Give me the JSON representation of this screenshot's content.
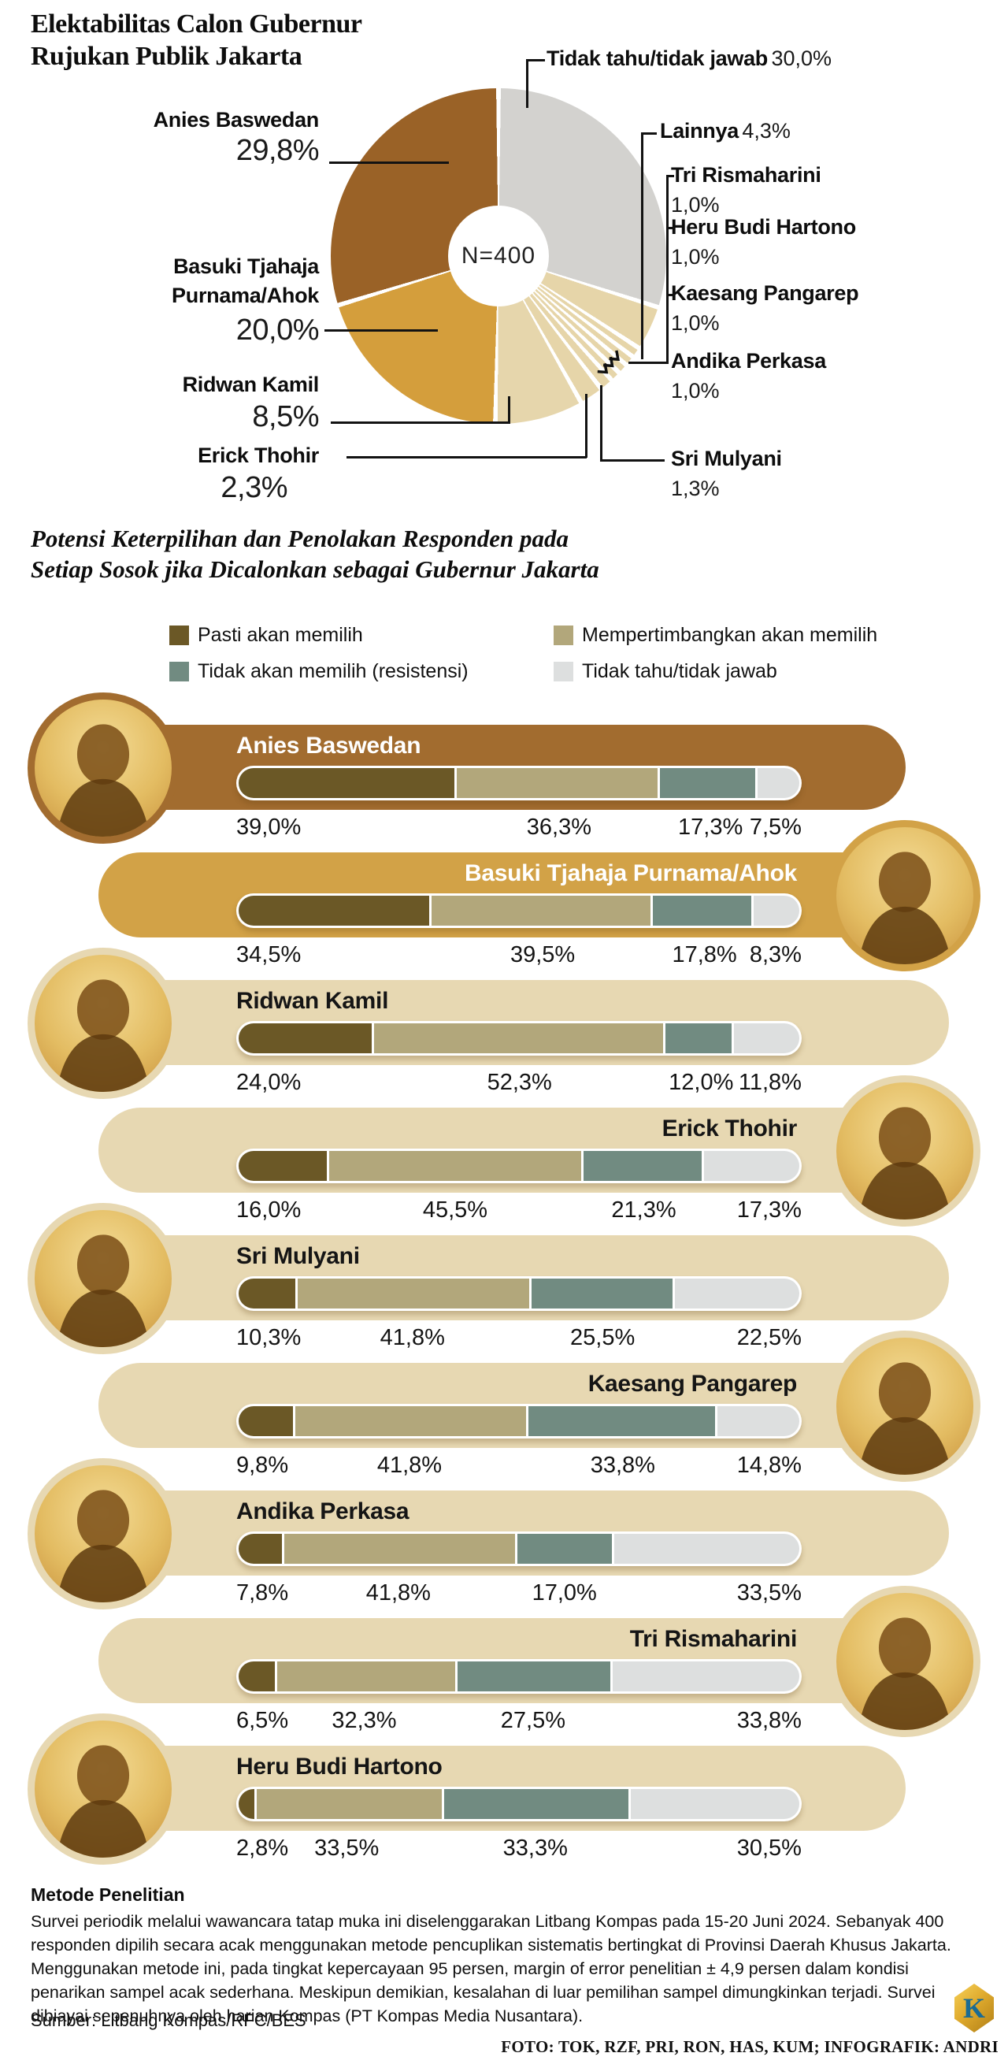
{
  "header": {
    "title_line1": "Elektabilitas Calon Gubernur",
    "title_line2": "Rujukan Publik Jakarta"
  },
  "chart_data": [
    {
      "type": "pie",
      "title": "Elektabilitas Calon Gubernur Rujukan Publik Jakarta",
      "n_label": "N=400",
      "slices": [
        {
          "label": "Tidak tahu/tidak jawab",
          "pct": 30.0,
          "display": "30,0%",
          "color": "#D3D2CF"
        },
        {
          "label": "Lainnya",
          "pct": 4.3,
          "display": "4,3%",
          "color": "#E6D5A9"
        },
        {
          "label": "Tri Rismaharini",
          "pct": 1.0,
          "display": "1,0%",
          "color": "#E6D5A9"
        },
        {
          "label": "Heru Budi Hartono",
          "pct": 1.0,
          "display": "1,0%",
          "color": "#E6D5A9"
        },
        {
          "label": "Kaesang Pangarep",
          "pct": 1.0,
          "display": "1,0%",
          "color": "#E6D5A9"
        },
        {
          "label": "Andika Perkasa",
          "pct": 1.0,
          "display": "1,0%",
          "color": "#E6D5A9"
        },
        {
          "label": "Sri Mulyani",
          "pct": 1.3,
          "display": "1,3%",
          "color": "#E6D5A9"
        },
        {
          "label": "Erick Thohir",
          "pct": 2.3,
          "display": "2,3%",
          "color": "#E6D5A9"
        },
        {
          "label": "Ridwan Kamil",
          "pct": 8.5,
          "display": "8,5%",
          "color": "#E6D6AC"
        },
        {
          "label": "Basuki Tjahaja Purnama/Ahok",
          "pct": 20.0,
          "display": "20,0%",
          "color": "#D49E3C"
        },
        {
          "label": "Anies Baswedan",
          "pct": 29.8,
          "display": "29,8%",
          "color": "#9A6227"
        }
      ]
    },
    {
      "type": "bar",
      "subtype": "stacked-horizontal",
      "title_line1": "Potensi Keterpilihan dan Penolakan Responden pada",
      "title_line2": "Setiap Sosok jika Dicalonkan sebagai Gubernur Jakarta",
      "legend": [
        {
          "label": "Pasti akan memilih",
          "color": "#6B5826"
        },
        {
          "label": "Mempertimbangkan akan memilih",
          "color": "#B2A77B"
        },
        {
          "label": "Tidak akan memilih (resistensi)",
          "color": "#718B81"
        },
        {
          "label": "Tidak tahu/tidak jawab",
          "color": "#DDDFDF"
        }
      ],
      "rows": [
        {
          "name": "Anies Baswedan",
          "values": [
            39.0,
            36.3,
            17.3,
            7.5
          ],
          "display": [
            "39,0%",
            "36,3%",
            "17,3%",
            "7,5%"
          ],
          "pill_color": "#A26C2F",
          "ring_color": "#A26C2F",
          "name_color": "#FFFFFF",
          "photo_side": "left"
        },
        {
          "name": "Basuki Tjahaja Purnama/Ahok",
          "values": [
            34.5,
            39.5,
            17.8,
            8.3
          ],
          "display": [
            "34,5%",
            "39,5%",
            "17,8%",
            "8,3%"
          ],
          "pill_color": "#D2A247",
          "ring_color": "#D2A247",
          "name_color": "#FFFFFF",
          "photo_side": "right"
        },
        {
          "name": "Ridwan Kamil",
          "values": [
            24.0,
            52.3,
            12.0,
            11.8
          ],
          "display": [
            "24,0%",
            "52,3%",
            "12,0%",
            "11,8%"
          ],
          "pill_color": "#E7D8B2",
          "ring_color": "#E7D8B2",
          "name_color": "#151515",
          "photo_side": "left"
        },
        {
          "name": "Erick Thohir",
          "values": [
            16.0,
            45.5,
            21.3,
            17.3
          ],
          "display": [
            "16,0%",
            "45,5%",
            "21,3%",
            "17,3%"
          ],
          "pill_color": "#E7D8B2",
          "ring_color": "#E7D8B2",
          "name_color": "#151515",
          "photo_side": "right"
        },
        {
          "name": "Sri Mulyani",
          "values": [
            10.3,
            41.8,
            25.5,
            22.5
          ],
          "display": [
            "10,3%",
            "41,8%",
            "25,5%",
            "22,5%"
          ],
          "pill_color": "#E7D8B2",
          "ring_color": "#E7D8B2",
          "name_color": "#151515",
          "photo_side": "left"
        },
        {
          "name": "Kaesang Pangarep",
          "values": [
            9.8,
            41.8,
            33.8,
            14.8
          ],
          "display": [
            "9,8%",
            "41,8%",
            "33,8%",
            "14,8%"
          ],
          "pill_color": "#E7D8B2",
          "ring_color": "#E7D8B2",
          "name_color": "#151515",
          "photo_side": "right"
        },
        {
          "name": "Andika Perkasa",
          "values": [
            7.8,
            41.8,
            17.0,
            33.5
          ],
          "display": [
            "7,8%",
            "41,8%",
            "17,0%",
            "33,5%"
          ],
          "pill_color": "#E7D8B2",
          "ring_color": "#E7D8B2",
          "name_color": "#151515",
          "photo_side": "left"
        },
        {
          "name": "Tri Rismaharini",
          "values": [
            6.5,
            32.3,
            27.5,
            33.8
          ],
          "display": [
            "6,5%",
            "32,3%",
            "27,5%",
            "33,8%"
          ],
          "pill_color": "#E7D8B2",
          "ring_color": "#E7D8B2",
          "name_color": "#151515",
          "photo_side": "right"
        },
        {
          "name": "Heru Budi Hartono",
          "values": [
            2.8,
            33.5,
            33.3,
            30.5
          ],
          "display": [
            "2,8%",
            "33,5%",
            "33,3%",
            "30,5%"
          ],
          "pill_color": "#E7D8B2",
          "ring_color": "#E7D8B2",
          "name_color": "#151515",
          "photo_side": "left"
        }
      ]
    }
  ],
  "footer": {
    "heading": "Metode Penelitian",
    "body": "Survei periodik melalui wawancara tatap muka ini diselenggarakan Litbang Kompas pada 15-20 Juni 2024. Sebanyak 400 responden dipilih secara acak menggunakan metode pencuplikan sistematis bertingkat di Provinsi Daerah Khusus Jakarta. Menggunakan metode ini, pada tingkat kepercayaan 95 persen, margin of error penelitian ± 4,9 persen dalam kondisi penarikan sampel acak sederhana. Meskipun demikian, kesalahan di luar pemilihan sampel dimungkinkan terjadi. Survei dibiayai sepenuhnya oleh harian Kompas (PT Kompas Media Nusantara).",
    "source": "Sumber: Litbang Kompas/RFC/BES",
    "credits": "FOTO: TOK, RZF, PRI, RON, HAS, KUM; INFOGRAFIK: ANDRI",
    "logo_letter": "K"
  }
}
